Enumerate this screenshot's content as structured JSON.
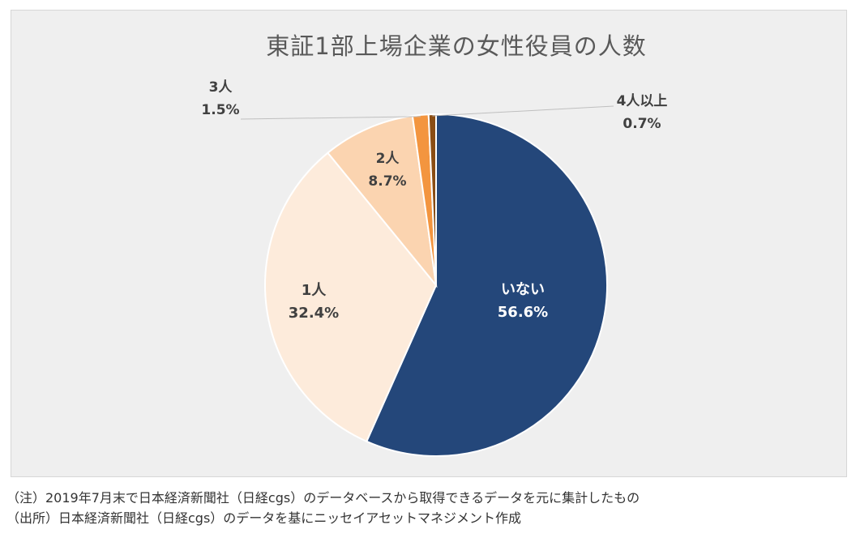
{
  "chart_data": {
    "type": "pie",
    "title": "東証1部上場企業の女性役員の人数",
    "slices": [
      {
        "label": "いない",
        "value": 56.6,
        "value_label": "56.6%",
        "color": "#24477a",
        "text_color": "#ffffff"
      },
      {
        "label": "1人",
        "value": 32.4,
        "value_label": "32.4%",
        "color": "#fdebdb",
        "text_color": "#404040"
      },
      {
        "label": "2人",
        "value": 8.7,
        "value_label": "8.7%",
        "color": "#fbd4b0",
        "text_color": "#404040"
      },
      {
        "label": "3人",
        "value": 1.5,
        "value_label": "1.5%",
        "color": "#f3953f",
        "text_color": "#404040"
      },
      {
        "label": "4人以上",
        "value": 0.7,
        "value_label": "0.7%",
        "color": "#8a4d14",
        "text_color": "#404040"
      }
    ],
    "start": "12 o'clock",
    "direction": "clockwise"
  },
  "notes": {
    "note": "（注）2019年7月末で日本経済新聞社（日経cgs）のデータベースから取得できるデータを元に集計したもの",
    "source": "（出所）日本経済新聞社（日経cgs）のデータを基にニッセイアセットマネジメント作成"
  }
}
